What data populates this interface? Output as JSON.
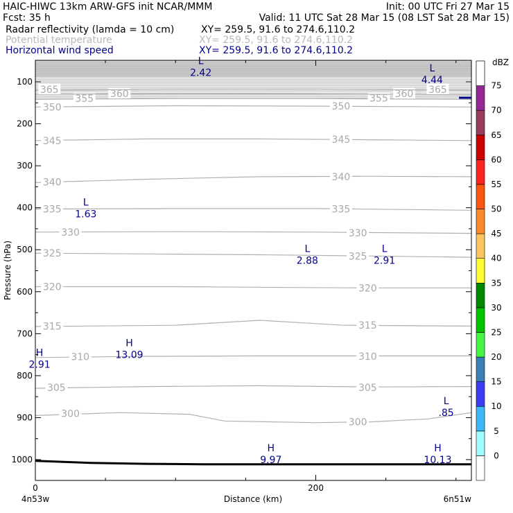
{
  "header": {
    "line1_left": "HAIC-HIWC 13km ARW-GFS init   NCAR/MMM",
    "line1_right": "Init: 00 UTC Fri 27 Mar 15",
    "line2_left": "Fcst:    35 h",
    "line2_right": "Valid: 11 UTC Sat 28 Mar 15 (08 LST Sat 28 Mar 15)",
    "field1_name": "Radar reflectivity (lamda = 10 cm)",
    "field1_xy": "XY= 259.5, 91.6 to 274.6,110.2",
    "field2_name": "Potential temperature",
    "field2_xy": "XY= 259.5, 91.6 to 274.6,110.2",
    "field3_name": "Horizontal wind speed",
    "field3_xy": "XY= 259.5, 91.6 to 274.6,110.2"
  },
  "chart_data": {
    "type": "cross-section",
    "ylabel": "Pressure (hPa)",
    "xlabel": "Distance (km)",
    "x_start_label": "4n53w",
    "x_end_label": "6n51w",
    "xlim": [
      0,
      311
    ],
    "ylim": [
      1045,
      53
    ],
    "y_ticks": [
      100,
      200,
      300,
      400,
      500,
      600,
      700,
      800,
      900,
      1000
    ],
    "x_ticks_major": [
      0,
      200
    ],
    "x_ticks_minor": [
      50,
      100,
      150,
      250,
      300
    ],
    "isentropes": [
      {
        "theta": 300,
        "points": [
          [
            0,
            895
          ],
          [
            60,
            888
          ],
          [
            110,
            892
          ],
          [
            135,
            908
          ],
          [
            200,
            912
          ],
          [
            240,
            910
          ],
          [
            280,
            903
          ],
          [
            311,
            888
          ]
        ],
        "labels": [
          {
            "x": 25,
            "p": 890
          },
          {
            "x": 230,
            "p": 910
          }
        ]
      },
      {
        "theta": 305,
        "points": [
          [
            0,
            830
          ],
          [
            80,
            826
          ],
          [
            160,
            824
          ],
          [
            240,
            827
          ],
          [
            311,
            826
          ]
        ],
        "labels": [
          {
            "x": 15,
            "p": 828
          },
          {
            "x": 237,
            "p": 828
          }
        ]
      },
      {
        "theta": 310,
        "points": [
          [
            0,
            757
          ],
          [
            80,
            754
          ],
          [
            160,
            753
          ],
          [
            240,
            753
          ],
          [
            311,
            753
          ]
        ],
        "labels": [
          {
            "x": 32,
            "p": 755
          },
          {
            "x": 237,
            "p": 754
          }
        ]
      },
      {
        "theta": 315,
        "points": [
          [
            0,
            683
          ],
          [
            100,
            680
          ],
          [
            160,
            668
          ],
          [
            220,
            680
          ],
          [
            311,
            682
          ]
        ],
        "labels": [
          {
            "x": 12,
            "p": 682
          },
          {
            "x": 237,
            "p": 680
          }
        ]
      },
      {
        "theta": 320,
        "points": [
          [
            0,
            588
          ],
          [
            100,
            588
          ],
          [
            180,
            590
          ],
          [
            240,
            591
          ],
          [
            311,
            591
          ]
        ],
        "labels": [
          {
            "x": 12,
            "p": 588
          },
          {
            "x": 237,
            "p": 591
          }
        ]
      },
      {
        "theta": 325,
        "points": [
          [
            0,
            508
          ],
          [
            80,
            510
          ],
          [
            160,
            512
          ],
          [
            240,
            515
          ],
          [
            311,
            518
          ]
        ],
        "labels": [
          {
            "x": 12,
            "p": 508
          },
          {
            "x": 230,
            "p": 515
          }
        ]
      },
      {
        "theta": 330,
        "points": [
          [
            0,
            458
          ],
          [
            100,
            457
          ],
          [
            200,
            458
          ],
          [
            311,
            461
          ]
        ],
        "labels": [
          {
            "x": 25,
            "p": 458
          },
          {
            "x": 230,
            "p": 460
          }
        ]
      },
      {
        "theta": 335,
        "points": [
          [
            0,
            403
          ],
          [
            100,
            402
          ],
          [
            200,
            402
          ],
          [
            311,
            406
          ]
        ],
        "labels": [
          {
            "x": 12,
            "p": 403
          },
          {
            "x": 218,
            "p": 403
          }
        ]
      },
      {
        "theta": 340,
        "points": [
          [
            0,
            340
          ],
          [
            80,
            332
          ],
          [
            160,
            326
          ],
          [
            240,
            325
          ],
          [
            311,
            326
          ]
        ],
        "labels": [
          {
            "x": 12,
            "p": 339
          },
          {
            "x": 218,
            "p": 326
          }
        ]
      },
      {
        "theta": 345,
        "points": [
          [
            0,
            240
          ],
          [
            80,
            236
          ],
          [
            160,
            236
          ],
          [
            240,
            238
          ],
          [
            311,
            240
          ]
        ],
        "labels": [
          {
            "x": 12,
            "p": 240
          },
          {
            "x": 218,
            "p": 237
          }
        ]
      },
      {
        "theta": 350,
        "points": [
          [
            0,
            160
          ],
          [
            100,
            157
          ],
          [
            200,
            158
          ],
          [
            311,
            160
          ]
        ],
        "labels": [
          {
            "x": 12,
            "p": 160
          },
          {
            "x": 218,
            "p": 158
          }
        ]
      },
      {
        "theta": 355,
        "points": [
          [
            0,
            142
          ],
          [
            100,
            140
          ],
          [
            200,
            140
          ],
          [
            311,
            142
          ]
        ],
        "labels": [
          {
            "x": 35,
            "p": 140
          },
          {
            "x": 245,
            "p": 139
          }
        ]
      },
      {
        "theta": 360,
        "points": [
          [
            0,
            130
          ],
          [
            100,
            128
          ],
          [
            200,
            129
          ],
          [
            311,
            131
          ]
        ],
        "labels": [
          {
            "x": 60,
            "p": 128
          },
          {
            "x": 263,
            "p": 128
          }
        ]
      },
      {
        "theta": 365,
        "points": [
          [
            0,
            120
          ],
          [
            100,
            118
          ],
          [
            200,
            118
          ],
          [
            311,
            120
          ]
        ],
        "labels": [
          {
            "x": 10,
            "p": 118
          },
          {
            "x": 287,
            "p": 118
          }
        ]
      }
    ],
    "wind_extrema": [
      {
        "kind": "L",
        "value": "2.42",
        "x": 118,
        "p": 58
      },
      {
        "kind": "L",
        "value": "4.44",
        "x": 283,
        "p": 75
      },
      {
        "kind": "L",
        "value": "1.63",
        "x": 36,
        "p": 395
      },
      {
        "kind": "L",
        "value": "2.88",
        "x": 194,
        "p": 505
      },
      {
        "kind": "L",
        "value": "2.91",
        "x": 249,
        "p": 505
      },
      {
        "kind": "H",
        "value": "13.09",
        "x": 67,
        "p": 730
      },
      {
        "kind": "H",
        "value": "2.91",
        "x": 3,
        "p": 753
      },
      {
        "kind": "L",
        "value": ".85",
        "x": 293,
        "p": 868
      },
      {
        "kind": "H",
        "value": "9.97",
        "x": 168,
        "p": 980
      },
      {
        "kind": "H",
        "value": "10.13",
        "x": 287,
        "p": 980
      }
    ],
    "terrain": [
      [
        0,
        1003
      ],
      [
        40,
        1008
      ],
      [
        80,
        1010
      ],
      [
        120,
        1011
      ],
      [
        180,
        1011
      ],
      [
        240,
        1011
      ],
      [
        311,
        1011
      ]
    ],
    "top_stipple_p": 53,
    "top_stipple_bottom_p": 140,
    "colorbar": {
      "unit": "dBZ",
      "levels": [
        0,
        5,
        10,
        15,
        20,
        25,
        30,
        35,
        40,
        45,
        50,
        55,
        60,
        65,
        70,
        75
      ],
      "colors": [
        "#ffffff",
        "#9ffdfd",
        "#3fb7f8",
        "#3b3bf3",
        "#3b7fb7",
        "#47f547",
        "#00c400",
        "#008800",
        "#fcfc33",
        "#fac55f",
        "#fb8b2c",
        "#fa5511",
        "#fb2520",
        "#cb0000",
        "#973f5a",
        "#922995",
        "#c88ec0"
      ]
    }
  }
}
